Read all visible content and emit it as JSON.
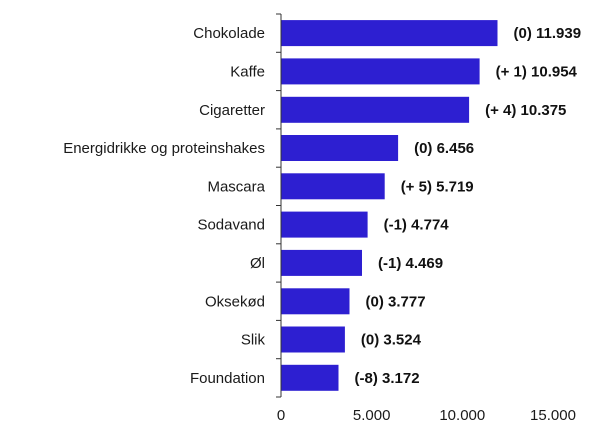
{
  "chart_data": {
    "type": "bar",
    "orientation": "horizontal",
    "title": "",
    "xlabel": "",
    "ylabel": "",
    "xlim": [
      0,
      15000
    ],
    "grid": false,
    "bar_color": "#2d1fd1",
    "categories": [
      "Chokolade",
      "Kaffe",
      "Cigaretter",
      "Energidrikke og proteinshakes",
      "Mascara",
      "Sodavand",
      "Øl",
      "Oksekød",
      "Slik",
      "Foundation"
    ],
    "values": [
      11939,
      10954,
      10375,
      6456,
      5719,
      4774,
      4469,
      3777,
      3524,
      3172
    ],
    "value_labels": [
      "(0) 11.939",
      "(+ 1) 10.954",
      "(+ 4) 10.375",
      "(0) 6.456",
      "(+ 5) 5.719",
      "(-1) 4.774",
      "(-1) 4.469",
      "(0) 3.777",
      "(0) 3.524",
      "(-8) 3.172"
    ],
    "x_ticks": [
      0,
      5000,
      10000,
      15000
    ],
    "x_tick_labels": [
      "0",
      "5.000",
      "10.000",
      "15.000"
    ]
  }
}
